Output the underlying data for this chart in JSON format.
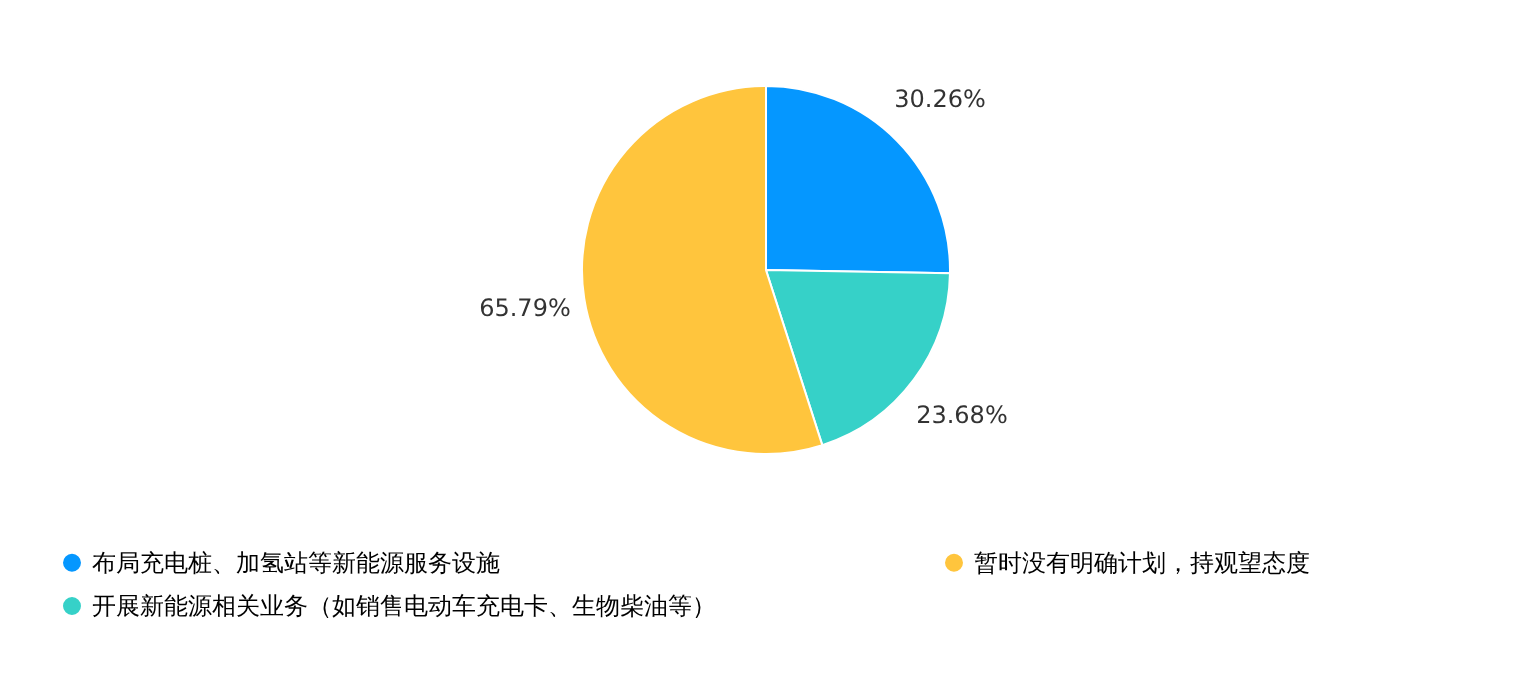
{
  "chart_data": {
    "type": "pie",
    "categories": [
      "布局充电桩、加氢站等新能源服务设施",
      "开展新能源相关业务（如销售电动车充电卡、生物柴油等）",
      "暂时没有明确计划，持观望态度"
    ],
    "values": [
      30.26,
      23.68,
      65.79
    ],
    "colors": [
      "#0597ff",
      "#36d1c8",
      "#ffc53d"
    ],
    "value_labels": [
      "30.26%",
      "23.68%",
      "65.79%"
    ],
    "legend": "bottom"
  }
}
